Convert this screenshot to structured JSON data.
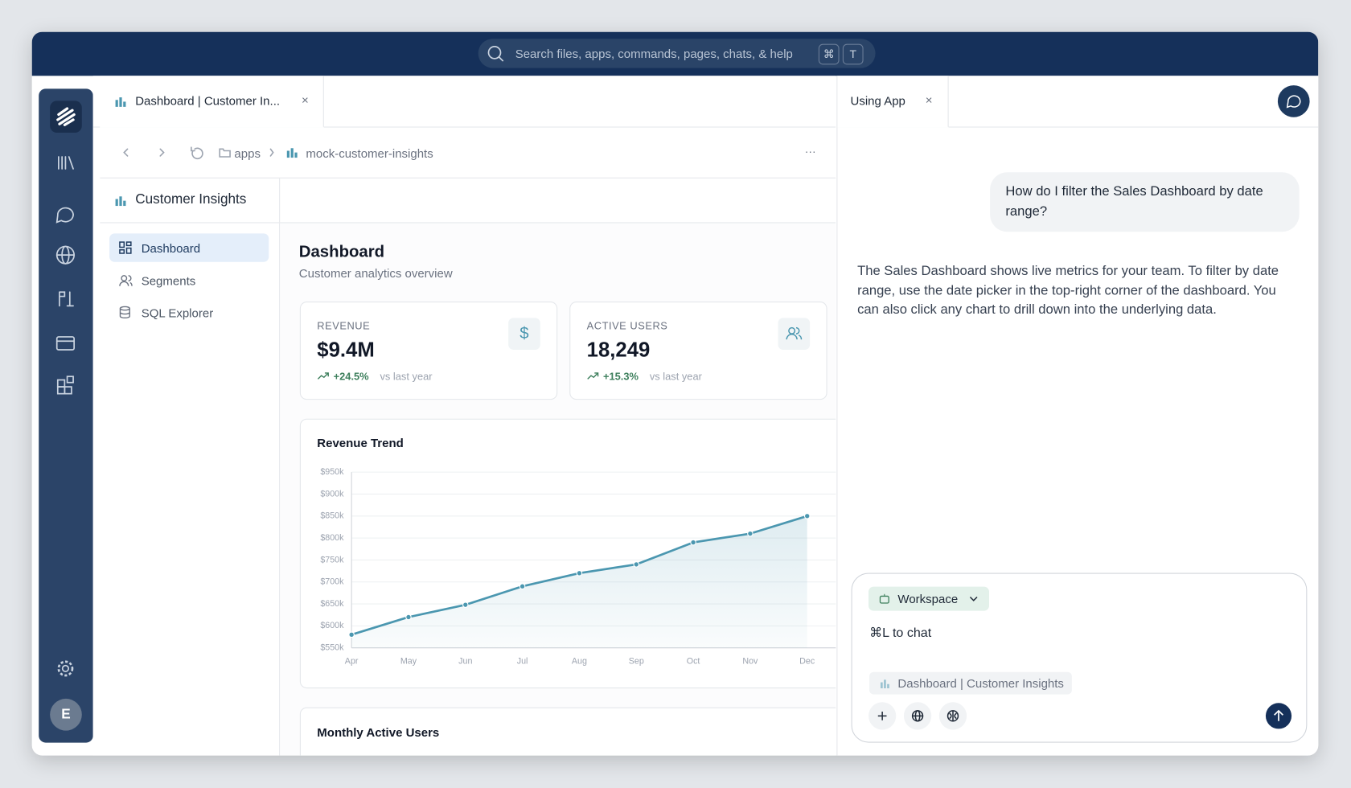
{
  "search": {
    "placeholder": "Search files, apps, commands, pages, chats, & help",
    "keys": [
      "⌘",
      "T"
    ]
  },
  "tabs": [
    "Dashboard | Customer In...",
    "Using App"
  ],
  "breadcrumb": [
    "apps",
    "mock-customer-insights"
  ],
  "more": "···",
  "avatar": "E",
  "sidebar": {
    "title": "Customer Insights",
    "items": [
      "Dashboard",
      "Segments",
      "SQL Explorer"
    ]
  },
  "dashboard": {
    "title": "Dashboard",
    "subtitle": "Customer analytics overview",
    "kpis": [
      {
        "label": "REVENUE",
        "value": "$9.4M",
        "change": "+24.5%",
        "note": "vs last year"
      },
      {
        "label": "ACTIVE USERS",
        "value": "18,249",
        "change": "+15.3%",
        "note": "vs last year"
      }
    ],
    "next_card_title": "Monthly Active Users"
  },
  "chart_data": {
    "type": "line",
    "title": "Revenue Trend",
    "categories": [
      "Apr",
      "May",
      "Jun",
      "Jul",
      "Aug",
      "Sep",
      "Oct",
      "Nov",
      "Dec"
    ],
    "values": [
      580000,
      620000,
      648000,
      690000,
      720000,
      740000,
      790000,
      810000,
      850000
    ],
    "color": "#4b97b0",
    "area": true,
    "grid": true,
    "ylim": [
      550000,
      950000
    ],
    "yticks": [
      {
        "value": 550000,
        "label": "$550k"
      },
      {
        "value": 600000,
        "label": "$600k"
      },
      {
        "value": 650000,
        "label": "$650k"
      },
      {
        "value": 700000,
        "label": "$700k"
      },
      {
        "value": 750000,
        "label": "$750k"
      },
      {
        "value": 800000,
        "label": "$800k"
      },
      {
        "value": 850000,
        "label": "$850k"
      },
      {
        "value": 900000,
        "label": "$900k"
      },
      {
        "value": 950000,
        "label": "$950k"
      }
    ]
  },
  "chat": {
    "user_message": "How do I filter the Sales Dashboard by date range?",
    "assistant_message": "The Sales Dashboard shows live metrics for your team. To filter by date range, use the date picker in the top-right corner of the dashboard. You can also click any chart to drill down into the underlying data.",
    "mode": "Workspace",
    "placeholder": "⌘L to chat",
    "context": "Dashboard | Customer Insights"
  }
}
